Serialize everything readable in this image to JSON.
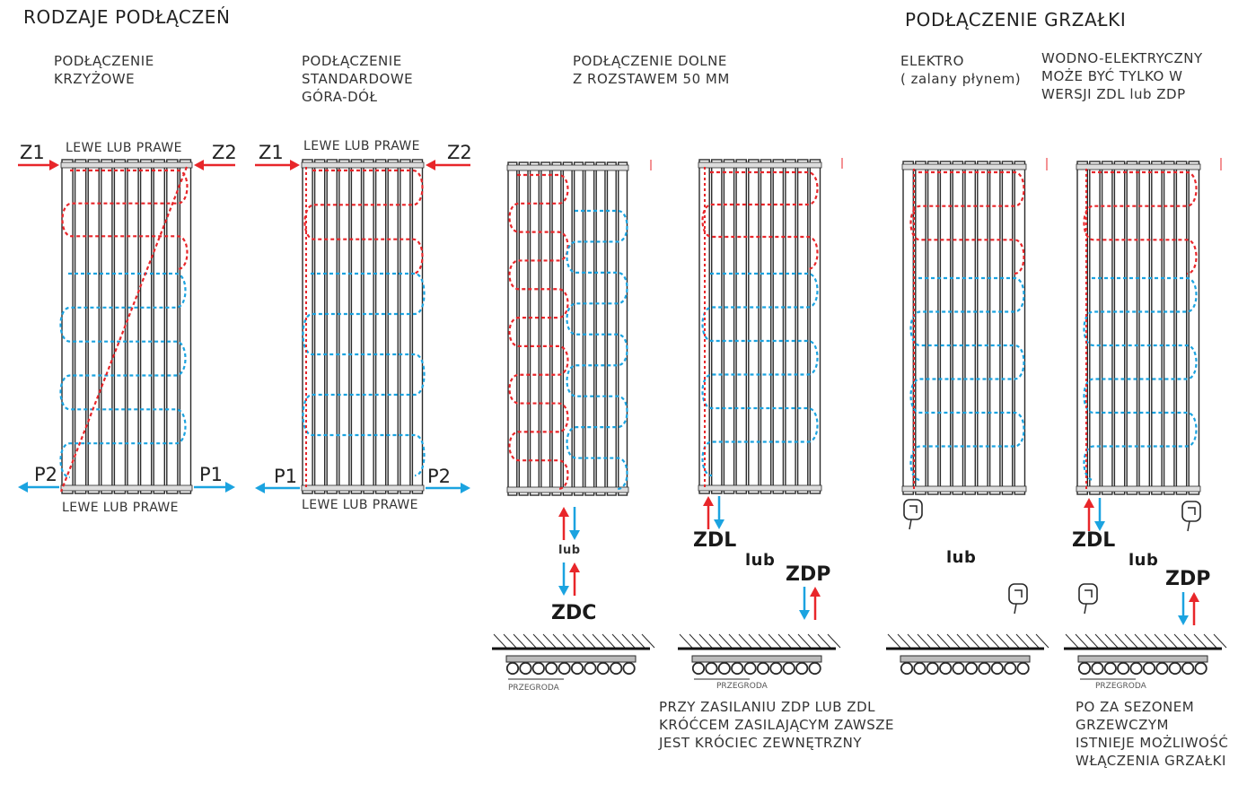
{
  "headings": {
    "left": "RODZAJE PODŁĄCZEŃ",
    "right": "PODŁĄCZENIE GRZAŁKI"
  },
  "columns": [
    {
      "title": "PODŁĄCZENIE\nKRZYŻOWE",
      "top_label": "LEWE LUB PRAWE",
      "bottom_label": "LEWE LUB PRAWE",
      "z_left": "Z1",
      "z_right": "Z2",
      "p_left": "P2",
      "p_right": "P1"
    },
    {
      "title": "PODŁĄCZENIE\nSTANDARDOWE\nGÓRA-DÓŁ",
      "top_label": "LEWE LUB PRAWE",
      "bottom_label": "LEWE LUB PRAWE",
      "z_left": "Z1",
      "z_right": "Z2",
      "p_left": "P1",
      "p_right": "P2"
    },
    {
      "title": "PODŁĄCZENIE DOLNE\nZ ROZSTAWEM 50 MM",
      "lub": "lub",
      "code": "ZDC",
      "partition": "PRZEGRODA"
    },
    {
      "code_left": "ZDL",
      "lub": "lub",
      "code_right": "ZDP",
      "partition": "PRZEGRODA",
      "note": "PRZY ZASILANIU ZDP LUB ZDL\nKRÓĆCEM ZASILAJĄCYM ZAWSZE\nJEST KRÓCIEC ZEWNĘTRZNY"
    },
    {
      "title": "ELEKTRO\n( zalany płynem)",
      "lub": "lub"
    },
    {
      "title": "WODNO-ELEKTRYCZNY\nMOŻE BYĆ TYLKO W\nWERSJI ZDL lub ZDP",
      "code_left": "ZDL",
      "lub": "lub",
      "code_right": "ZDP",
      "partition": "PRZEGRODA",
      "note": "PO ZA SEZONEM\nGRZEWCZYM\nISTNIEJE MOŻLIWOŚĆ\nWŁĄCZENIA GRZAŁKI"
    }
  ],
  "colors": {
    "supply": "#e8262a",
    "return": "#1ba3e0",
    "outline": "#2a2a2a"
  },
  "icons": [
    "heating-element-icon",
    "arrow-icon",
    "wall-floor-icon"
  ]
}
